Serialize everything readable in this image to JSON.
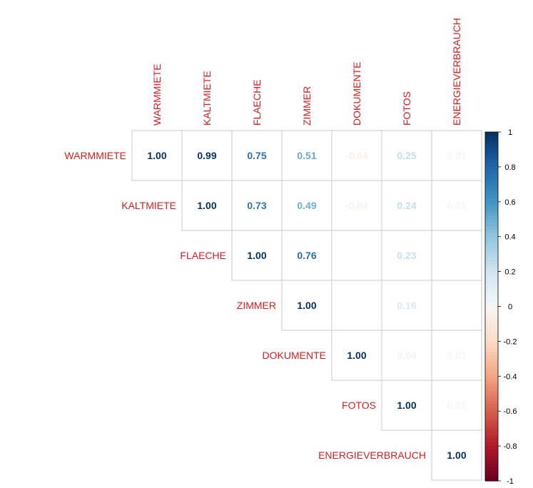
{
  "chart_data": {
    "type": "heatmap",
    "variables": [
      "WARMMIETE",
      "KALTMIETE",
      "FLAECHE",
      "ZIMMER",
      "DOKUMENTE",
      "FOTOS",
      "ENERGIEVERBRAUCH"
    ],
    "matrix": [
      [
        1.0,
        0.99,
        0.75,
        0.51,
        -0.04,
        0.25,
        0.01
      ],
      [
        null,
        1.0,
        0.73,
        0.49,
        -0.04,
        0.24,
        0.01
      ],
      [
        null,
        null,
        1.0,
        0.76,
        0.0,
        0.23,
        0.0
      ],
      [
        null,
        null,
        null,
        1.0,
        0.0,
        0.16,
        0.0
      ],
      [
        null,
        null,
        null,
        null,
        1.0,
        0.04,
        0.01
      ],
      [
        null,
        null,
        null,
        null,
        null,
        1.0,
        0.01
      ],
      [
        null,
        null,
        null,
        null,
        null,
        null,
        1.0
      ]
    ],
    "labels": [
      [
        "1.00",
        "0.99",
        "0.75",
        "0.51",
        "-0.04",
        "0.25",
        "0.01"
      ],
      [
        null,
        "1.00",
        "0.73",
        "0.49",
        "-0.04",
        "0.24",
        "0.01"
      ],
      [
        null,
        null,
        "1.00",
        "0.76",
        "",
        "0.23",
        ""
      ],
      [
        null,
        null,
        null,
        "1.00",
        "",
        "0.16",
        ""
      ],
      [
        null,
        null,
        null,
        null,
        "1.00",
        "0.04",
        "0.01"
      ],
      [
        null,
        null,
        null,
        null,
        null,
        "1.00",
        "0.01"
      ],
      [
        null,
        null,
        null,
        null,
        null,
        null,
        "1.00"
      ]
    ],
    "colorbar": {
      "range": [
        -1,
        1
      ],
      "ticks": [
        "1",
        "0.8",
        "0.6",
        "0.4",
        "0.2",
        "0",
        "-0.2",
        "-0.4",
        "-0.6",
        "-0.8",
        "-1"
      ]
    },
    "colors": {
      "label": "#e41a1c",
      "negative_end": "#67001f",
      "positive_end": "#053061",
      "mid": "#ffffff",
      "grid": "#c8c8c8"
    }
  }
}
